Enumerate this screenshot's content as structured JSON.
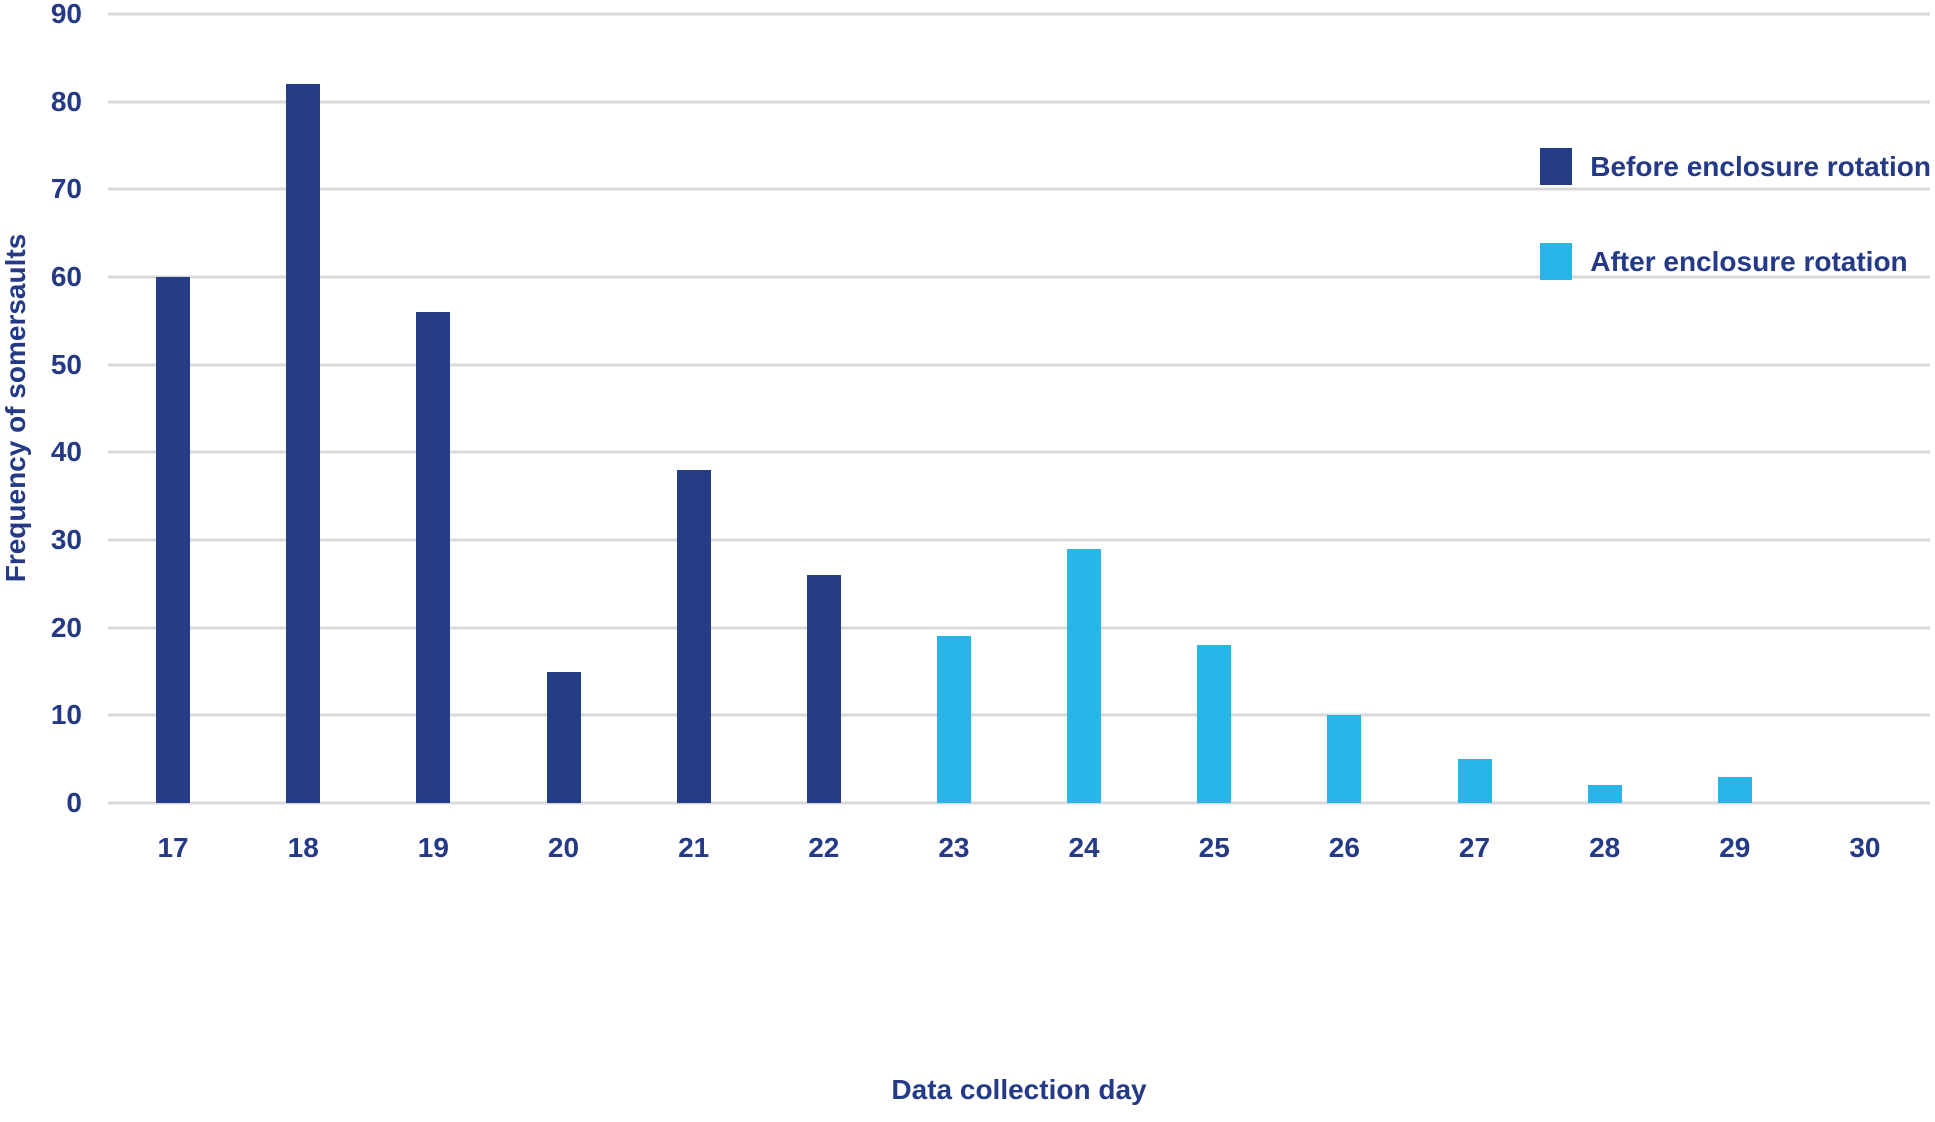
{
  "chart_data": {
    "type": "bar",
    "title": "",
    "xlabel": "Data collection day",
    "ylabel": "Frequency of somersaults",
    "categories": [
      "17",
      "18",
      "19",
      "20",
      "21",
      "22",
      "23",
      "24",
      "25",
      "26",
      "27",
      "28",
      "29",
      "30"
    ],
    "series": [
      {
        "name": "Before enclosure rotation",
        "color": "#253d87",
        "values": [
          60,
          82,
          56,
          15,
          38,
          26,
          null,
          null,
          null,
          null,
          null,
          null,
          null,
          null
        ]
      },
      {
        "name": "After enclosure rotation",
        "color": "#29b5e8",
        "values": [
          null,
          null,
          null,
          null,
          null,
          null,
          19,
          29,
          18,
          10,
          5,
          2,
          3,
          null
        ]
      }
    ],
    "ylim": [
      0,
      90
    ],
    "yticks": [
      0,
      10,
      20,
      30,
      40,
      50,
      60,
      70,
      80,
      90
    ],
    "grid": true,
    "legend_position": "top-right"
  }
}
